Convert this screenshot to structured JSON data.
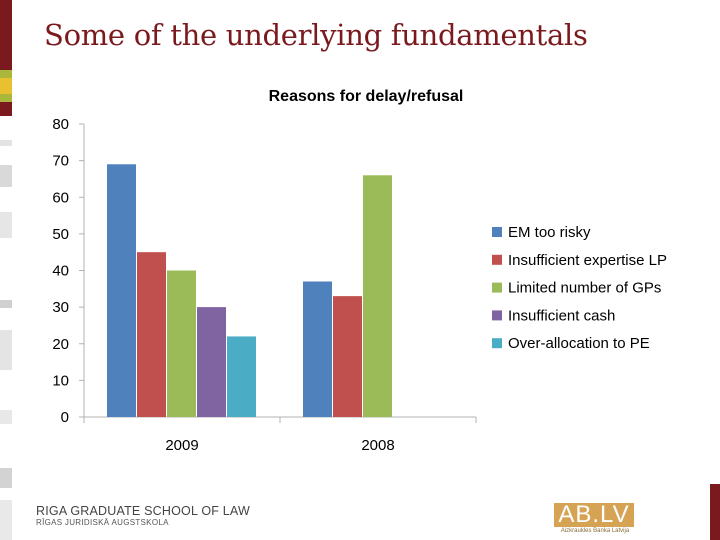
{
  "slide": {
    "title": "Some of the underlying fundamentals"
  },
  "footer": {
    "school_line1": "RIGA GRADUATE SCHOOL OF LAW",
    "school_line2": "RĪGAS JURIDISKĀ AUGSTSKOLA",
    "logo_text": "AB.LV",
    "logo_subtext": "Aizkraukles Banka Latvija"
  },
  "colors": {
    "accent": "#7a1a1f",
    "side_strip": [
      "#7a1a1f",
      "#a9b83a",
      "#e8c030",
      "#d7d7d7"
    ]
  },
  "chart_data": {
    "type": "bar",
    "title": "Reasons for delay/refusal",
    "categories": [
      "2009",
      "2008"
    ],
    "ylim": [
      0,
      80
    ],
    "yticks": [
      0,
      10,
      20,
      30,
      40,
      50,
      60,
      70,
      80
    ],
    "grid": false,
    "legend_position": "right",
    "series": [
      {
        "name": "EM too risky",
        "color": "#4f81bd",
        "values": [
          69,
          37
        ]
      },
      {
        "name": "Insufficient expertise LP",
        "color": "#c0504d",
        "values": [
          45,
          33
        ]
      },
      {
        "name": "Limited number of GPs",
        "color": "#9bbb59",
        "values": [
          40,
          66
        ]
      },
      {
        "name": "Insufficient cash",
        "color": "#8064a2",
        "values": [
          30,
          null
        ]
      },
      {
        "name": "Over-allocation to PE",
        "color": "#4bacc6",
        "values": [
          22,
          null
        ]
      }
    ]
  }
}
